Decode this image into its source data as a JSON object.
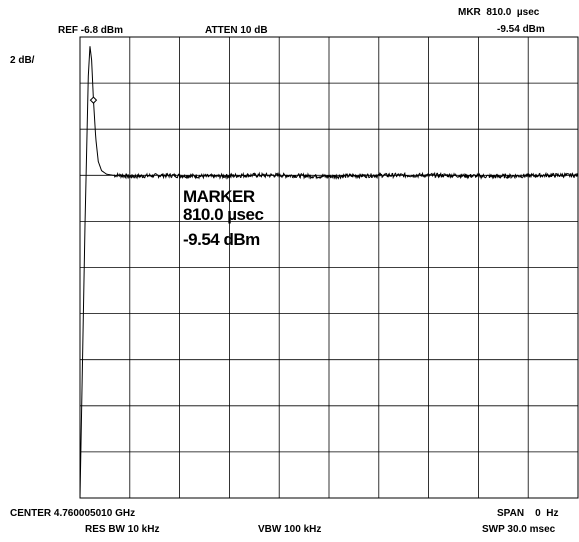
{
  "header": {
    "ref": "REF -6.8 dBm",
    "atten": "ATTEN 10 dB",
    "mkr_line1": "MKR  810.0  µsec",
    "mkr_line2": "-9.54 dBm",
    "scale": "2 dB/"
  },
  "marker_box": {
    "title": "MARKER",
    "time": "810.0 µsec",
    "level": "-9.54 dBm"
  },
  "footer": {
    "center": "CENTER 4.760005010 GHz",
    "span": "SPAN    0  Hz",
    "res_bw": "RES BW 10 kHz",
    "vbw": "VBW 100 kHz",
    "sweep": "SWP 30.0 msec"
  },
  "colors": {
    "grid": "#000000",
    "trace": "#000000",
    "background": "#ffffff"
  },
  "chart_data": {
    "type": "line",
    "title": "",
    "xlabel": "",
    "ylabel": "",
    "x_unit": "msec",
    "y_unit": "dBm",
    "xlim": [
      0,
      30
    ],
    "ylim": [
      -26.8,
      -6.8
    ],
    "grid": true,
    "grid_divisions": {
      "x": 10,
      "y": 10
    },
    "marker": {
      "x": 0.81,
      "y": -9.54
    },
    "series": [
      {
        "values_x": [
          0,
          0.3,
          0.5,
          0.6,
          0.7,
          0.81,
          0.95,
          1.1,
          1.3,
          1.6,
          2.0,
          2.5,
          3,
          5,
          8,
          10,
          12,
          15,
          18,
          20,
          22,
          25,
          28,
          30
        ],
        "values_y": [
          -26.8,
          -15.0,
          -8.5,
          -7.2,
          -7.8,
          -9.54,
          -11.2,
          -12.2,
          -12.6,
          -12.75,
          -12.8,
          -12.8,
          -12.85,
          -12.8,
          -12.85,
          -12.8,
          -12.8,
          -12.85,
          -12.8,
          -12.8,
          -12.8,
          -12.85,
          -12.8,
          -12.8
        ]
      }
    ]
  }
}
